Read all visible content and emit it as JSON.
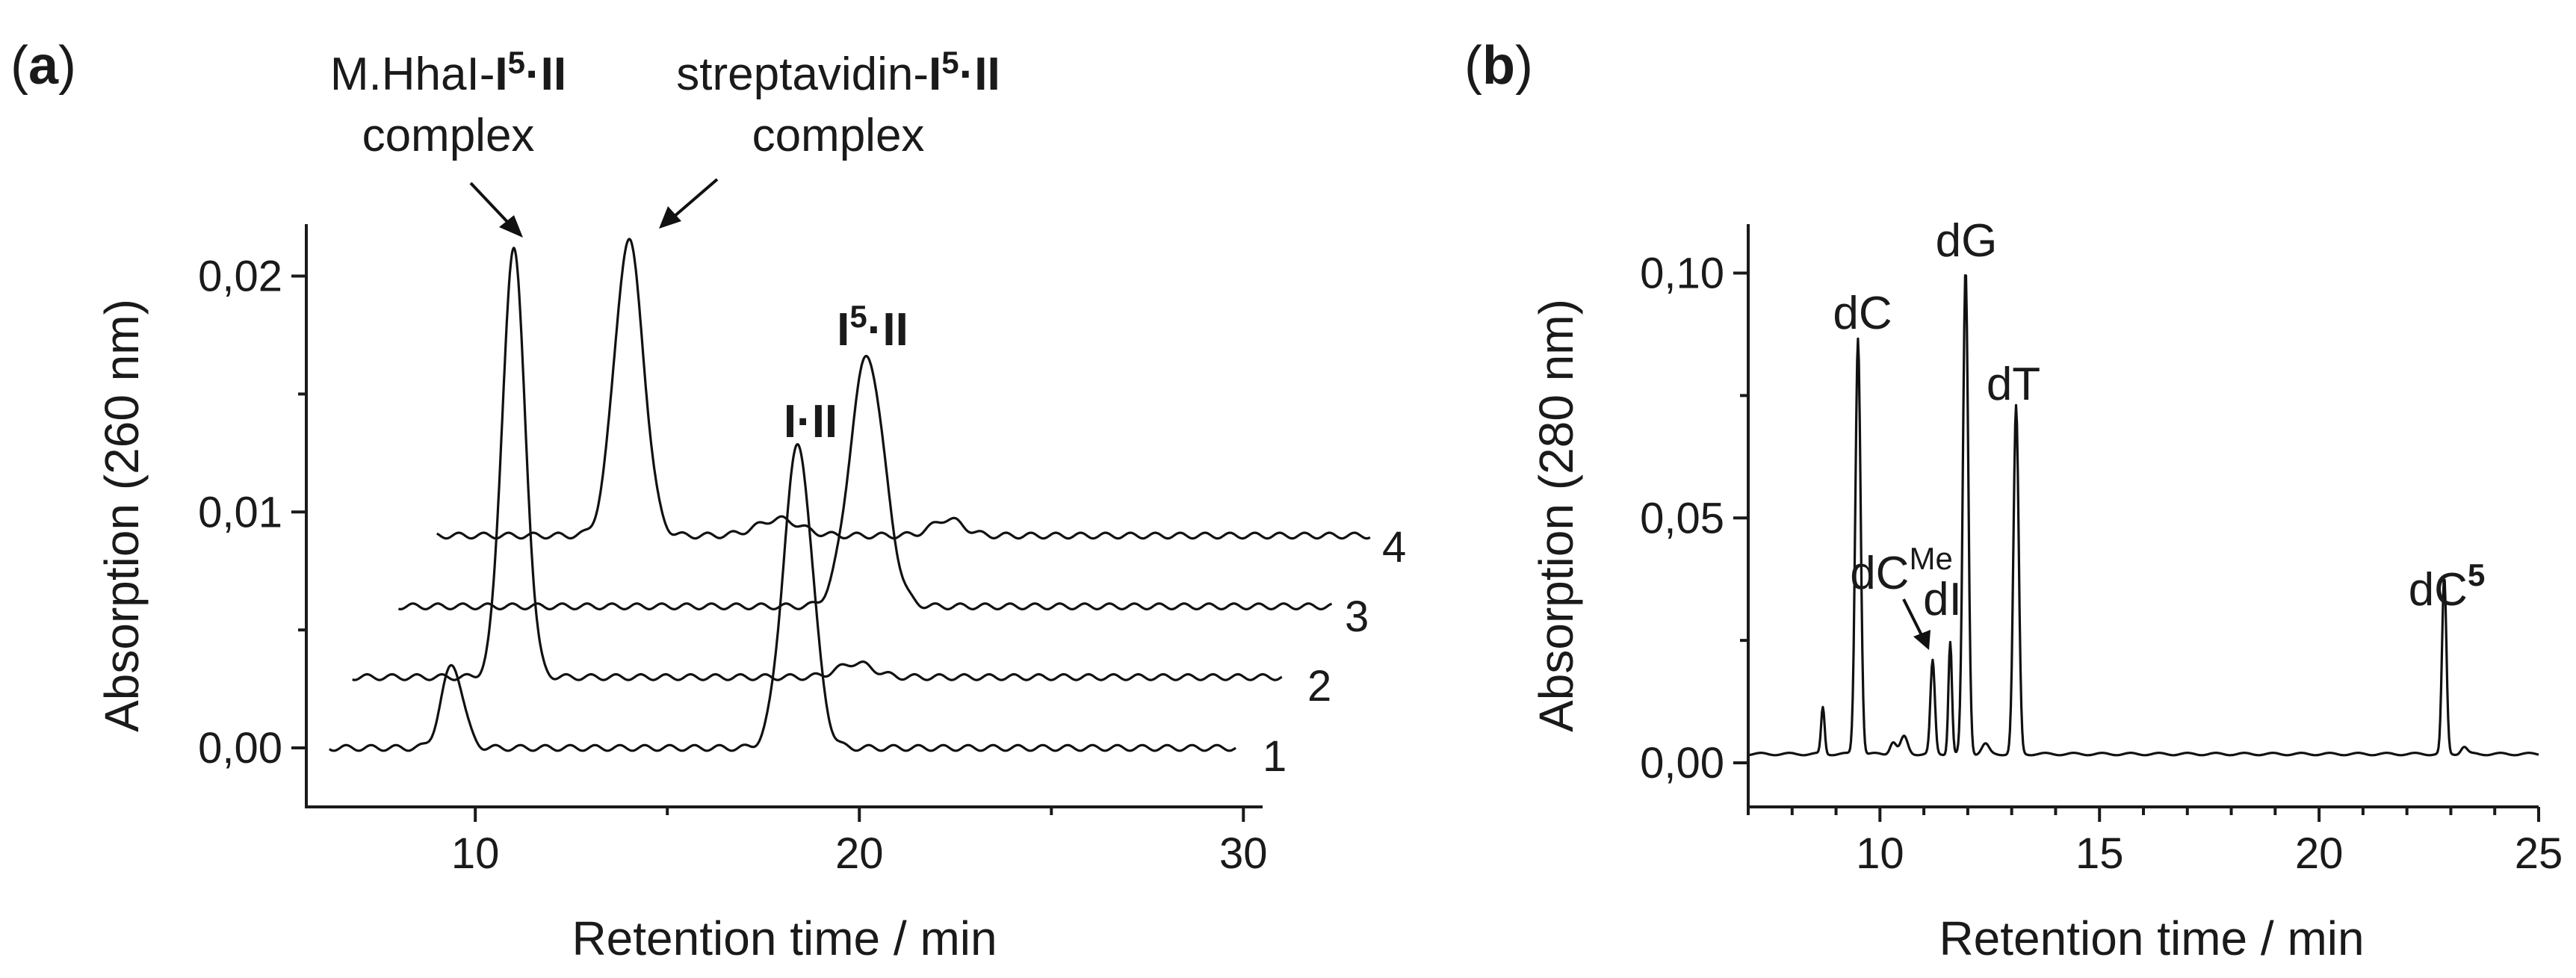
{
  "chart_data": [
    {
      "type": "line",
      "panel": "a",
      "xlabel": "Retention time / min",
      "ylabel": "Absorption (260 nm)",
      "xlim": [
        5.6,
        30.5
      ],
      "ylim": [
        -0.0025,
        0.0222
      ],
      "xticks": [
        {
          "v": 10,
          "label": "10"
        },
        {
          "v": 20,
          "label": "20"
        },
        {
          "v": 30,
          "label": "30"
        }
      ],
      "yticks": [
        {
          "v": 0,
          "label": "0,00"
        },
        {
          "v": 0.01,
          "label": "0,01"
        },
        {
          "v": 0.02,
          "label": "0,02"
        }
      ],
      "series": [
        {
          "name": "1",
          "baseline": 0.0,
          "start": 6.2,
          "end": 29.8,
          "peaks": [
            {
              "x": 9.4,
              "h": 0.0035,
              "w": 0.28
            },
            {
              "x": 18.4,
              "h": 0.0128,
              "w": 0.38
            }
          ]
        },
        {
          "name": "2",
          "baseline": 0.003,
          "start": 6.8,
          "end": 31.0,
          "peaks": [
            {
              "x": 11.0,
              "h": 0.0181,
              "w": 0.3
            },
            {
              "x": 19.9,
              "h": 0.0006,
              "w": 0.45
            }
          ]
        },
        {
          "name": "3",
          "baseline": 0.006,
          "start": 8.0,
          "end": 32.3,
          "peaks": [
            {
              "x": 20.2,
              "h": 0.0106,
              "w": 0.45
            }
          ]
        },
        {
          "name": "4",
          "baseline": 0.009,
          "start": 9.0,
          "end": 33.3,
          "peaks": [
            {
              "x": 14.0,
              "h": 0.0125,
              "w": 0.38
            },
            {
              "x": 17.9,
              "h": 0.0007,
              "w": 0.55
            },
            {
              "x": 22.3,
              "h": 0.0007,
              "w": 0.4
            }
          ]
        }
      ],
      "annotations": [
        {
          "id": "mhhai",
          "line1": "M.HhaI-",
          "bold1": "I",
          "sup": "5",
          "bold2": "·II",
          "line2": "complex"
        },
        {
          "id": "strep",
          "line1": "streptavidin-",
          "bold1": "I",
          "sup": "5",
          "bold2": "·II",
          "line2": "complex"
        },
        {
          "id": "i-ii",
          "text": "I·II"
        },
        {
          "id": "i5-ii",
          "main": "I",
          "sup": "5",
          "tail": "·II"
        }
      ]
    },
    {
      "type": "line",
      "panel": "b",
      "xlabel": "Retention time / min",
      "ylabel": "Absorption (280 nm)",
      "xlim": [
        7.0,
        25.0
      ],
      "ylim": [
        -0.009,
        0.11
      ],
      "xticks": [
        {
          "v": 10,
          "label": "10"
        },
        {
          "v": 15,
          "label": "15"
        },
        {
          "v": 20,
          "label": "20"
        },
        {
          "v": 25,
          "label": "25"
        }
      ],
      "yticks": [
        {
          "v": 0,
          "label": "0,00"
        },
        {
          "v": 0.05,
          "label": "0,05"
        },
        {
          "v": 0.1,
          "label": "0,10"
        }
      ],
      "series": [
        {
          "name": "trace",
          "baseline": 0.0018,
          "start": 7.0,
          "end": 25.0,
          "peaks": [
            {
              "x": 8.7,
              "h": 0.0095,
              "w": 0.04
            },
            {
              "x": 9.5,
              "h": 0.085,
              "w": 0.06
            },
            {
              "x": 10.3,
              "h": 0.0025,
              "w": 0.07
            },
            {
              "x": 10.55,
              "h": 0.0035,
              "w": 0.08
            },
            {
              "x": 11.2,
              "h": 0.019,
              "w": 0.05
            },
            {
              "x": 11.6,
              "h": 0.023,
              "w": 0.04
            },
            {
              "x": 11.95,
              "h": 0.099,
              "w": 0.06
            },
            {
              "x": 12.4,
              "h": 0.002,
              "w": 0.08
            },
            {
              "x": 13.1,
              "h": 0.071,
              "w": 0.06
            },
            {
              "x": 22.85,
              "h": 0.036,
              "w": 0.05
            },
            {
              "x": 23.3,
              "h": 0.0015,
              "w": 0.07
            }
          ]
        }
      ],
      "annotations": [
        {
          "id": "dC",
          "text": "dC"
        },
        {
          "id": "dG",
          "text": "dG"
        },
        {
          "id": "dT",
          "text": "dT"
        },
        {
          "id": "dI",
          "text": "dI"
        },
        {
          "id": "dCMe",
          "main": "dC",
          "sup": "Me"
        },
        {
          "id": "dC5",
          "main": "dC",
          "sup": "5"
        }
      ]
    }
  ],
  "panel_labels": {
    "a": "a",
    "b": "b"
  },
  "trace_labels": [
    "1",
    "2",
    "3",
    "4"
  ]
}
